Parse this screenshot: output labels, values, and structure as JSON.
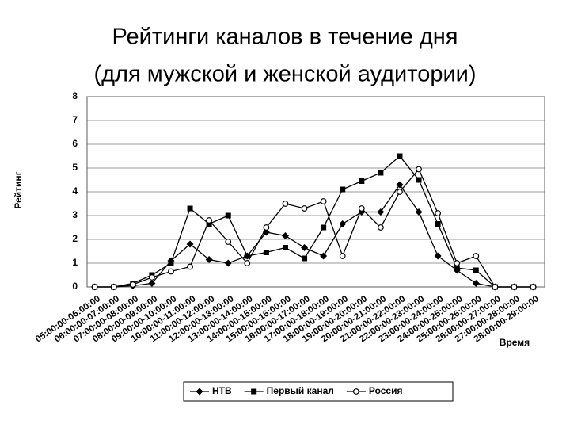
{
  "chart_data": {
    "type": "line",
    "title": [
      "Рейтинги каналов в течение дня",
      "(для мужской и женской аудитории)"
    ],
    "y_label": "Рейтинг",
    "x_label": "Время",
    "categories": [
      "05:00:00-06:00:00",
      "06:00:00-07:00:00",
      "07:00:00-08:00:00",
      "08:00:00-09:00:00",
      "09:00:00-10:00:00",
      "10:00:00-11:00:00",
      "11:00:00-12:00:00",
      "12:00:00-13:00:00",
      "13:00:00-14:00:00",
      "14:00:00-15:00:00",
      "15:00:00-16:00:00",
      "16:00:00-17:00:00",
      "17:00:00-18:00:00",
      "18:00:00-19:00:00",
      "19:00:00-20:00:00",
      "20:00:00-21:00:00",
      "21:00:00-22:00:00",
      "22:00:00-23:00:00",
      "23:00:00-24:00:00",
      "24:00:00-25:00:00",
      "25:00:00-26:00:00",
      "26:00:00-27:00:00",
      "27:00:00-28:00:00",
      "28:00:00-29:00:00"
    ],
    "series": [
      {
        "name": "НТВ",
        "color": "#000000",
        "marker": "diamond",
        "values": [
          0,
          0,
          0.05,
          0.15,
          1.1,
          1.8,
          1.15,
          1.0,
          1.3,
          2.3,
          2.15,
          1.65,
          1.3,
          2.65,
          3.15,
          3.15,
          4.3,
          3.15,
          1.3,
          0.7,
          0.15,
          0,
          0,
          0
        ]
      },
      {
        "name": "Первый канал",
        "color": "#000000",
        "marker": "square",
        "values": [
          0,
          0,
          0.15,
          0.5,
          1.0,
          3.3,
          2.65,
          3.0,
          1.3,
          1.45,
          1.65,
          1.2,
          2.5,
          4.1,
          4.45,
          4.8,
          5.5,
          4.5,
          2.65,
          0.8,
          0.7,
          0,
          0,
          0
        ]
      },
      {
        "name": "Россия",
        "color": "#000000",
        "marker": "circle",
        "values": [
          0,
          0,
          0.1,
          0.4,
          0.65,
          0.85,
          2.8,
          1.9,
          1.0,
          2.5,
          3.5,
          3.3,
          3.6,
          1.3,
          3.3,
          2.5,
          4.0,
          4.95,
          3.1,
          1.0,
          1.3,
          0,
          0,
          0
        ]
      }
    ],
    "ylim": [
      0,
      8
    ],
    "yticks": [
      0,
      1,
      2,
      3,
      4,
      5,
      6,
      7,
      8
    ],
    "grid": true,
    "legend": "bottom"
  }
}
